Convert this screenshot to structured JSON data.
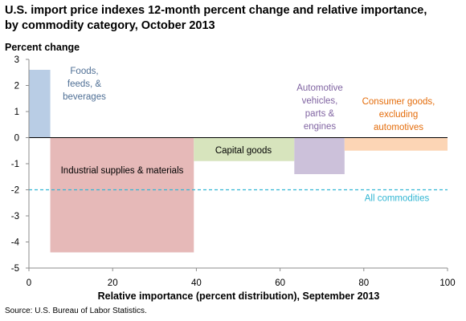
{
  "title_line1": "U.S. import price indexes 12-month percent change and relative importance,",
  "title_line2": "by commodity category, October 2013",
  "source": "Source: U.S. Bureau of Labor Statistics.",
  "chart_data": {
    "type": "bar",
    "subtype": "variable-width",
    "xlabel": "Relative importance (percent distribution), September 2013",
    "ylabel": "Percent change",
    "xlim": [
      0,
      100
    ],
    "ylim": [
      -5,
      3
    ],
    "xticks": [
      0,
      20,
      40,
      60,
      80,
      100
    ],
    "yticks": [
      3,
      2,
      1,
      0,
      -1,
      -2,
      -3,
      -4,
      -5
    ],
    "grid": false,
    "bars": [
      {
        "label_lines": [
          "Foods,",
          "feeds, &",
          "beverages"
        ],
        "x_start": 0,
        "x_end": 5.1,
        "value": 2.6,
        "color": "#b9cde5",
        "label_color": "#4f6f95"
      },
      {
        "label_lines": [
          "Industrial supplies & materials"
        ],
        "x_start": 5.1,
        "x_end": 39.4,
        "value": -4.4,
        "color": "#e6b9b8",
        "label_color": "#000000"
      },
      {
        "label_lines": [
          "Capital goods"
        ],
        "x_start": 39.4,
        "x_end": 63.4,
        "value": -0.9,
        "color": "#d7e4bd",
        "label_color": "#000000"
      },
      {
        "label_lines": [
          "Automotive",
          "vehicles,",
          "parts &",
          "engines"
        ],
        "x_start": 63.4,
        "x_end": 75.4,
        "value": -1.4,
        "color": "#ccc1da",
        "label_color": "#8064a2"
      },
      {
        "label_lines": [
          "Consumer goods,",
          "excluding",
          "automotives"
        ],
        "x_start": 75.4,
        "x_end": 100,
        "value": -0.5,
        "color": "#fcd5b5",
        "label_color": "#e46c0a"
      }
    ],
    "reference_line": {
      "label": "All commodities",
      "value": -2.0,
      "color": "#31b6d3",
      "style": "dashed"
    }
  }
}
